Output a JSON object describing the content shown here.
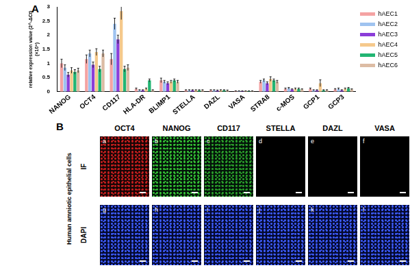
{
  "chart_data": {
    "type": "bar",
    "panel_label": "A",
    "y_label": [
      "relative expression value (2^-ΔCt)",
      "(×10⁵)"
    ],
    "categories": [
      "NANOG",
      "OCT4",
      "CD117",
      "HLA-DR",
      "BLIMP1",
      "STELLA",
      "DAZL",
      "VASA",
      "STRA8",
      "c-MOS",
      "GCP1",
      "GCP3"
    ],
    "series": [
      {
        "name": "hAEC1",
        "color": "#f4a3a3",
        "values": [
          1.0,
          1.15,
          1.15,
          0.1,
          0.4,
          0.05,
          0.05,
          0.02,
          0.35,
          0.1,
          0.1,
          0.08
        ],
        "errors": [
          0.15,
          0.15,
          0.2,
          0.03,
          0.08,
          0.02,
          0.02,
          0.01,
          0.05,
          0.03,
          0.03,
          0.03
        ]
      },
      {
        "name": "hAEC2",
        "color": "#9fc3f0",
        "values": [
          0.85,
          1.35,
          2.4,
          0.05,
          0.35,
          0.05,
          0.05,
          0.02,
          0.4,
          0.12,
          0.05,
          0.1
        ],
        "errors": [
          0.1,
          0.12,
          0.2,
          0.02,
          0.05,
          0.02,
          0.02,
          0.01,
          0.05,
          0.03,
          0.02,
          0.03
        ]
      },
      {
        "name": "hAEC3",
        "color": "#8b3dd8",
        "values": [
          0.6,
          0.95,
          1.85,
          0.05,
          0.3,
          0.05,
          0.04,
          0.02,
          0.3,
          0.08,
          0.05,
          0.05
        ],
        "errors": [
          0.08,
          0.1,
          0.15,
          0.02,
          0.05,
          0.02,
          0.02,
          0.01,
          0.05,
          0.02,
          0.02,
          0.02
        ]
      },
      {
        "name": "hAEC4",
        "color": "#f5c98c",
        "values": [
          0.75,
          1.4,
          2.85,
          0.1,
          0.35,
          0.05,
          0.05,
          0.02,
          0.45,
          0.1,
          0.3,
          0.1
        ],
        "errors": [
          0.1,
          0.12,
          0.3,
          0.03,
          0.05,
          0.02,
          0.02,
          0.01,
          0.08,
          0.03,
          0.12,
          0.03
        ]
      },
      {
        "name": "hAEC5",
        "color": "#22b573",
        "values": [
          0.7,
          0.8,
          0.8,
          0.4,
          0.4,
          0.05,
          0.05,
          0.02,
          0.4,
          0.1,
          0.05,
          0.12
        ],
        "errors": [
          0.08,
          0.1,
          0.1,
          0.05,
          0.05,
          0.02,
          0.02,
          0.01,
          0.05,
          0.03,
          0.02,
          0.03
        ]
      },
      {
        "name": "hAEC6",
        "color": "#dcbca4",
        "values": [
          0.75,
          1.35,
          0.85,
          0.05,
          0.35,
          0.05,
          0.04,
          0.02,
          0.35,
          0.08,
          0.05,
          0.08
        ],
        "errors": [
          0.08,
          0.12,
          0.1,
          0.02,
          0.05,
          0.02,
          0.02,
          0.01,
          0.05,
          0.02,
          0.02,
          0.02
        ]
      }
    ],
    "ylim": [
      0,
      3
    ],
    "yticks": [
      0,
      0.5,
      1,
      1.5,
      2,
      2.5,
      3
    ],
    "grid": false,
    "legend": "top-right"
  },
  "panel_b": {
    "panel_label": "B",
    "row_group_label": "Human amniotic epithelial cells",
    "columns": [
      "OCT4",
      "NANOG",
      "CD117",
      "STELLA",
      "DAZL",
      "VASA"
    ],
    "rows": [
      {
        "label": "IF",
        "panels": [
          "a",
          "b",
          "c",
          "d",
          "e",
          "f"
        ]
      },
      {
        "label": "DAPI",
        "panels": [
          "g",
          "h",
          "i",
          "j",
          "k",
          "l"
        ]
      }
    ]
  }
}
